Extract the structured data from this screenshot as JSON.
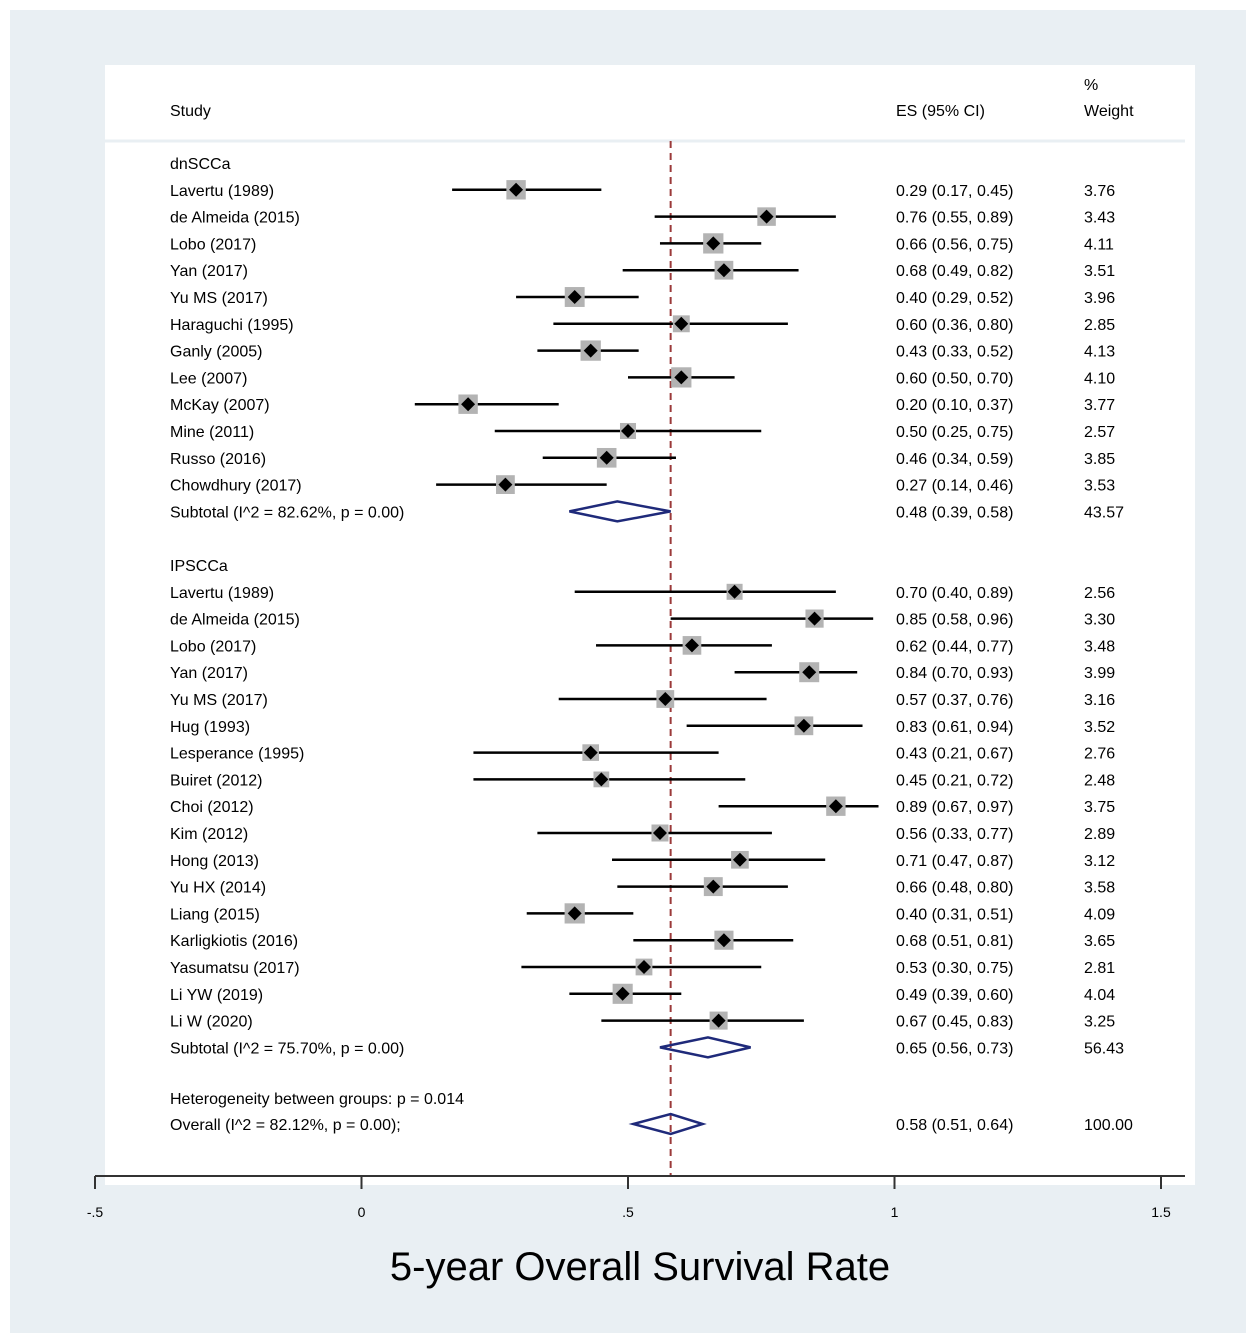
{
  "chart_data": {
    "type": "forest",
    "header": {
      "study": "Study",
      "es": "ES (95% CI)",
      "weight_line1": "%",
      "weight_line2": "Weight"
    },
    "reference_line": 0.58,
    "groups": [
      {
        "name": "dnSCCa",
        "studies": [
          {
            "label": "Lavertu (1989)",
            "es": 0.29,
            "lo": 0.17,
            "hi": 0.45,
            "es_text": "0.29 (0.17, 0.45)",
            "weight": "3.76"
          },
          {
            "label": "de Almeida (2015)",
            "es": 0.76,
            "lo": 0.55,
            "hi": 0.89,
            "es_text": "0.76 (0.55, 0.89)",
            "weight": "3.43"
          },
          {
            "label": "Lobo (2017)",
            "es": 0.66,
            "lo": 0.56,
            "hi": 0.75,
            "es_text": "0.66 (0.56, 0.75)",
            "weight": "4.11"
          },
          {
            "label": "Yan (2017)",
            "es": 0.68,
            "lo": 0.49,
            "hi": 0.82,
            "es_text": "0.68 (0.49, 0.82)",
            "weight": "3.51"
          },
          {
            "label": "Yu MS (2017)",
            "es": 0.4,
            "lo": 0.29,
            "hi": 0.52,
            "es_text": "0.40 (0.29, 0.52)",
            "weight": "3.96"
          },
          {
            "label": "Haraguchi (1995)",
            "es": 0.6,
            "lo": 0.36,
            "hi": 0.8,
            "es_text": "0.60 (0.36, 0.80)",
            "weight": "2.85"
          },
          {
            "label": "Ganly (2005)",
            "es": 0.43,
            "lo": 0.33,
            "hi": 0.52,
            "es_text": "0.43 (0.33, 0.52)",
            "weight": "4.13"
          },
          {
            "label": "Lee (2007)",
            "es": 0.6,
            "lo": 0.5,
            "hi": 0.7,
            "es_text": "0.60 (0.50, 0.70)",
            "weight": "4.10"
          },
          {
            "label": "McKay (2007)",
            "es": 0.2,
            "lo": 0.1,
            "hi": 0.37,
            "es_text": "0.20 (0.10, 0.37)",
            "weight": "3.77"
          },
          {
            "label": "Mine (2011)",
            "es": 0.5,
            "lo": 0.25,
            "hi": 0.75,
            "es_text": "0.50 (0.25, 0.75)",
            "weight": "2.57"
          },
          {
            "label": "Russo (2016)",
            "es": 0.46,
            "lo": 0.34,
            "hi": 0.59,
            "es_text": "0.46 (0.34, 0.59)",
            "weight": "3.85"
          },
          {
            "label": "Chowdhury (2017)",
            "es": 0.27,
            "lo": 0.14,
            "hi": 0.46,
            "es_text": "0.27 (0.14, 0.46)",
            "weight": "3.53"
          }
        ],
        "subtotal": {
          "label": "Subtotal  (I^2 = 82.62%, p = 0.00)",
          "es": 0.48,
          "lo": 0.39,
          "hi": 0.58,
          "es_text": "0.48 (0.39, 0.58)",
          "weight": "43.57"
        }
      },
      {
        "name": "IPSCCa",
        "studies": [
          {
            "label": "Lavertu (1989)",
            "es": 0.7,
            "lo": 0.4,
            "hi": 0.89,
            "es_text": "0.70 (0.40, 0.89)",
            "weight": "2.56"
          },
          {
            "label": "de Almeida (2015)",
            "es": 0.85,
            "lo": 0.58,
            "hi": 0.96,
            "es_text": "0.85 (0.58, 0.96)",
            "weight": "3.30"
          },
          {
            "label": "Lobo (2017)",
            "es": 0.62,
            "lo": 0.44,
            "hi": 0.77,
            "es_text": "0.62 (0.44, 0.77)",
            "weight": "3.48"
          },
          {
            "label": "Yan (2017)",
            "es": 0.84,
            "lo": 0.7,
            "hi": 0.93,
            "es_text": "0.84 (0.70, 0.93)",
            "weight": "3.99"
          },
          {
            "label": "Yu MS (2017)",
            "es": 0.57,
            "lo": 0.37,
            "hi": 0.76,
            "es_text": "0.57 (0.37, 0.76)",
            "weight": "3.16"
          },
          {
            "label": "Hug (1993)",
            "es": 0.83,
            "lo": 0.61,
            "hi": 0.94,
            "es_text": "0.83 (0.61, 0.94)",
            "weight": "3.52"
          },
          {
            "label": "Lesperance (1995)",
            "es": 0.43,
            "lo": 0.21,
            "hi": 0.67,
            "es_text": "0.43 (0.21, 0.67)",
            "weight": "2.76"
          },
          {
            "label": "Buiret (2012)",
            "es": 0.45,
            "lo": 0.21,
            "hi": 0.72,
            "es_text": "0.45 (0.21, 0.72)",
            "weight": "2.48"
          },
          {
            "label": "Choi (2012)",
            "es": 0.89,
            "lo": 0.67,
            "hi": 0.97,
            "es_text": "0.89 (0.67, 0.97)",
            "weight": "3.75"
          },
          {
            "label": "Kim (2012)",
            "es": 0.56,
            "lo": 0.33,
            "hi": 0.77,
            "es_text": "0.56 (0.33, 0.77)",
            "weight": "2.89"
          },
          {
            "label": "Hong (2013)",
            "es": 0.71,
            "lo": 0.47,
            "hi": 0.87,
            "es_text": "0.71 (0.47, 0.87)",
            "weight": "3.12"
          },
          {
            "label": "Yu HX (2014)",
            "es": 0.66,
            "lo": 0.48,
            "hi": 0.8,
            "es_text": "0.66 (0.48, 0.80)",
            "weight": "3.58"
          },
          {
            "label": "Liang (2015)",
            "es": 0.4,
            "lo": 0.31,
            "hi": 0.51,
            "es_text": "0.40 (0.31, 0.51)",
            "weight": "4.09"
          },
          {
            "label": "Karligkiotis (2016)",
            "es": 0.68,
            "lo": 0.51,
            "hi": 0.81,
            "es_text": "0.68 (0.51, 0.81)",
            "weight": "3.65"
          },
          {
            "label": "Yasumatsu (2017)",
            "es": 0.53,
            "lo": 0.3,
            "hi": 0.75,
            "es_text": "0.53 (0.30, 0.75)",
            "weight": "2.81"
          },
          {
            "label": "Li YW (2019)",
            "es": 0.49,
            "lo": 0.39,
            "hi": 0.6,
            "es_text": "0.49 (0.39, 0.60)",
            "weight": "4.04"
          },
          {
            "label": "Li W (2020)",
            "es": 0.67,
            "lo": 0.45,
            "hi": 0.83,
            "es_text": "0.67 (0.45, 0.83)",
            "weight": "3.25"
          }
        ],
        "subtotal": {
          "label": "Subtotal  (I^2 = 75.70%, p = 0.00)",
          "es": 0.65,
          "lo": 0.56,
          "hi": 0.73,
          "es_text": "0.65 (0.56, 0.73)",
          "weight": "56.43"
        }
      }
    ],
    "heterogeneity_text": "Heterogeneity between groups: p = 0.014",
    "overall": {
      "label": "Overall  (I^2 = 82.12%, p = 0.00);",
      "es": 0.58,
      "lo": 0.51,
      "hi": 0.64,
      "es_text": "0.58 (0.51, 0.64)",
      "weight": "100.00"
    },
    "x_axis": {
      "range": [
        -0.5,
        1.5
      ],
      "ticks": [
        -0.5,
        0,
        0.5,
        1,
        1.5
      ],
      "tick_labels": [
        "-.5",
        "0",
        ".5",
        "1",
        "1.5"
      ],
      "label": "5-year Overall Survival Rate"
    },
    "colors": {
      "background": "#e9eff3",
      "marker_box": "#b3b3b3",
      "diamond": "#1f2a7a",
      "reference_line": "#9b3a3a",
      "ink": "#000000"
    }
  }
}
